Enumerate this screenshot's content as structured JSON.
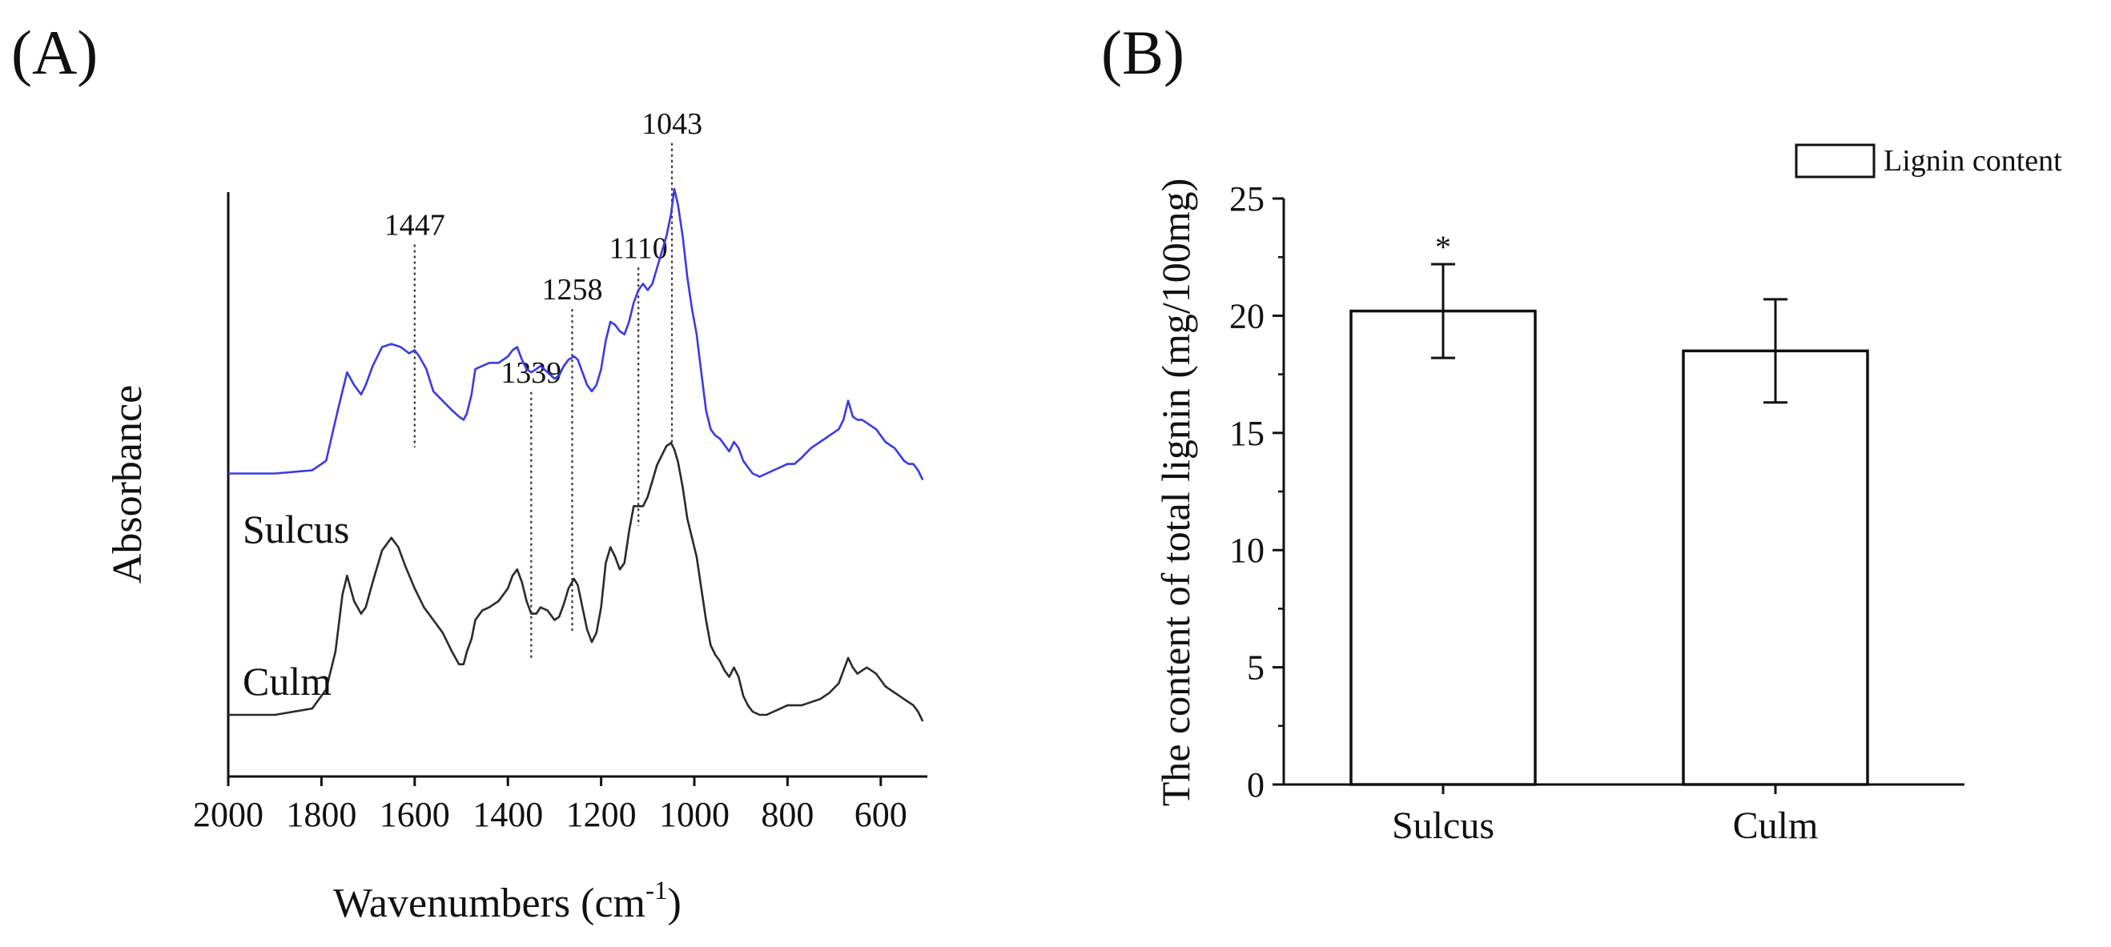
{
  "panel_labels": {
    "a": "(A)",
    "b": "(B)"
  },
  "chart_data": [
    {
      "type": "line",
      "panel": "(A)",
      "title": "",
      "xlabel": "Wavenumbers (cm",
      "xlabel_sup": "-1",
      "xlabel_tail": ")",
      "ylabel": "Absorbance",
      "xlim": [
        2000,
        500
      ],
      "x_reversed": true,
      "xticks": [
        "2000",
        "1800",
        "1600",
        "1400",
        "1200",
        "1000",
        "800",
        "600"
      ],
      "ylim": [
        0,
        1.25
      ],
      "series": [
        {
          "name": "Sulcus",
          "color": "#3a3ae8",
          "x": [
            2000,
            1900,
            1820,
            1790,
            1765,
            1745,
            1730,
            1715,
            1705,
            1690,
            1670,
            1650,
            1630,
            1612,
            1600,
            1590,
            1575,
            1560,
            1540,
            1520,
            1505,
            1495,
            1488,
            1478,
            1470,
            1455,
            1440,
            1420,
            1400,
            1390,
            1380,
            1370,
            1360,
            1350,
            1339,
            1330,
            1315,
            1300,
            1290,
            1280,
            1270,
            1258,
            1250,
            1240,
            1230,
            1220,
            1210,
            1200,
            1190,
            1180,
            1170,
            1160,
            1150,
            1140,
            1130,
            1120,
            1110,
            1100,
            1090,
            1080,
            1070,
            1060,
            1050,
            1043,
            1035,
            1025,
            1015,
            1005,
            995,
            985,
            975,
            965,
            955,
            945,
            935,
            925,
            915,
            905,
            895,
            885,
            875,
            860,
            845,
            830,
            815,
            800,
            785,
            770,
            750,
            730,
            710,
            690,
            680,
            670,
            660,
            650,
            640,
            630,
            620,
            610,
            600,
            590,
            580,
            570,
            560,
            550,
            540,
            530,
            520,
            510
          ],
          "values": [
            0.3,
            0.3,
            0.31,
            0.34,
            0.5,
            0.62,
            0.58,
            0.55,
            0.58,
            0.64,
            0.7,
            0.71,
            0.7,
            0.68,
            0.69,
            0.67,
            0.63,
            0.56,
            0.53,
            0.5,
            0.48,
            0.47,
            0.49,
            0.55,
            0.63,
            0.64,
            0.65,
            0.65,
            0.67,
            0.69,
            0.7,
            0.66,
            0.63,
            0.62,
            0.63,
            0.64,
            0.62,
            0.6,
            0.61,
            0.64,
            0.66,
            0.67,
            0.66,
            0.62,
            0.58,
            0.56,
            0.58,
            0.63,
            0.72,
            0.78,
            0.77,
            0.75,
            0.74,
            0.78,
            0.84,
            0.88,
            0.9,
            0.88,
            0.9,
            0.95,
            1.0,
            1.05,
            1.12,
            1.2,
            1.15,
            1.05,
            0.92,
            0.82,
            0.74,
            0.62,
            0.5,
            0.44,
            0.42,
            0.41,
            0.39,
            0.37,
            0.4,
            0.38,
            0.34,
            0.32,
            0.3,
            0.29,
            0.3,
            0.31,
            0.32,
            0.33,
            0.33,
            0.35,
            0.38,
            0.4,
            0.42,
            0.44,
            0.47,
            0.53,
            0.48,
            0.47,
            0.47,
            0.46,
            0.45,
            0.44,
            0.42,
            0.4,
            0.39,
            0.38,
            0.36,
            0.34,
            0.33,
            0.33,
            0.31,
            0.28
          ]
        },
        {
          "name": "Culm",
          "color": "#2a2a2a",
          "x": [
            2000,
            1900,
            1820,
            1790,
            1770,
            1755,
            1745,
            1730,
            1715,
            1705,
            1690,
            1670,
            1650,
            1635,
            1620,
            1600,
            1580,
            1560,
            1540,
            1520,
            1505,
            1495,
            1488,
            1478,
            1470,
            1455,
            1440,
            1420,
            1400,
            1390,
            1380,
            1370,
            1360,
            1350,
            1339,
            1330,
            1315,
            1300,
            1290,
            1280,
            1270,
            1258,
            1250,
            1240,
            1230,
            1220,
            1210,
            1200,
            1190,
            1180,
            1170,
            1160,
            1150,
            1140,
            1130,
            1120,
            1110,
            1100,
            1090,
            1080,
            1070,
            1060,
            1050,
            1043,
            1035,
            1025,
            1015,
            1005,
            995,
            985,
            975,
            965,
            955,
            945,
            935,
            925,
            915,
            905,
            895,
            885,
            875,
            860,
            845,
            830,
            815,
            800,
            785,
            770,
            750,
            730,
            710,
            690,
            680,
            670,
            660,
            650,
            640,
            630,
            620,
            610,
            600,
            590,
            580,
            570,
            560,
            550,
            540,
            530,
            520,
            510
          ],
          "values": [
            0.0,
            0.0,
            0.02,
            0.08,
            0.2,
            0.38,
            0.44,
            0.36,
            0.32,
            0.34,
            0.42,
            0.52,
            0.56,
            0.53,
            0.47,
            0.4,
            0.34,
            0.3,
            0.26,
            0.2,
            0.16,
            0.16,
            0.2,
            0.24,
            0.3,
            0.33,
            0.34,
            0.36,
            0.4,
            0.44,
            0.46,
            0.42,
            0.36,
            0.32,
            0.32,
            0.34,
            0.33,
            0.3,
            0.31,
            0.35,
            0.4,
            0.43,
            0.41,
            0.34,
            0.27,
            0.23,
            0.26,
            0.34,
            0.48,
            0.53,
            0.5,
            0.46,
            0.48,
            0.58,
            0.66,
            0.66,
            0.66,
            0.69,
            0.74,
            0.79,
            0.82,
            0.85,
            0.86,
            0.84,
            0.8,
            0.72,
            0.62,
            0.56,
            0.5,
            0.4,
            0.3,
            0.22,
            0.19,
            0.17,
            0.14,
            0.12,
            0.15,
            0.12,
            0.06,
            0.03,
            0.01,
            0.0,
            0.0,
            0.01,
            0.02,
            0.03,
            0.03,
            0.03,
            0.04,
            0.05,
            0.07,
            0.1,
            0.14,
            0.18,
            0.15,
            0.13,
            0.14,
            0.15,
            0.14,
            0.13,
            0.11,
            0.09,
            0.08,
            0.07,
            0.06,
            0.05,
            0.04,
            0.03,
            0.01,
            -0.02
          ]
        }
      ],
      "series_label_text": [
        "Sulcus",
        "Culm"
      ],
      "annotations": [
        {
          "label": "1447",
          "x": 1600,
          "top": 1.02,
          "bottom": 0.58
        },
        {
          "label": "1339",
          "x": 1350,
          "top": 0.7,
          "bottom": 0.12
        },
        {
          "label": "1258",
          "x": 1262,
          "top": 0.88,
          "bottom": 0.18
        },
        {
          "label": "1110",
          "x": 1120,
          "top": 0.97,
          "bottom": 0.41
        },
        {
          "label": "1043",
          "x": 1048,
          "top": 1.24,
          "bottom": 0.59
        }
      ]
    },
    {
      "type": "bar",
      "panel": "(B)",
      "title": "",
      "xlabel": "",
      "ylabel": "The content of total lignin (mg/100mg)",
      "categories": [
        "Sulcus",
        "Culm"
      ],
      "values": [
        20.2,
        18.5
      ],
      "errors": [
        2.0,
        2.2
      ],
      "ylim": [
        0,
        25
      ],
      "yticks": [
        "0",
        "5",
        "10",
        "15",
        "20",
        "25"
      ],
      "significance": [
        "*",
        ""
      ],
      "legend": [
        "Lignin content"
      ],
      "legend_position": "top-right",
      "bar_fill": "#ffffff",
      "bar_stroke": "#111111"
    }
  ]
}
